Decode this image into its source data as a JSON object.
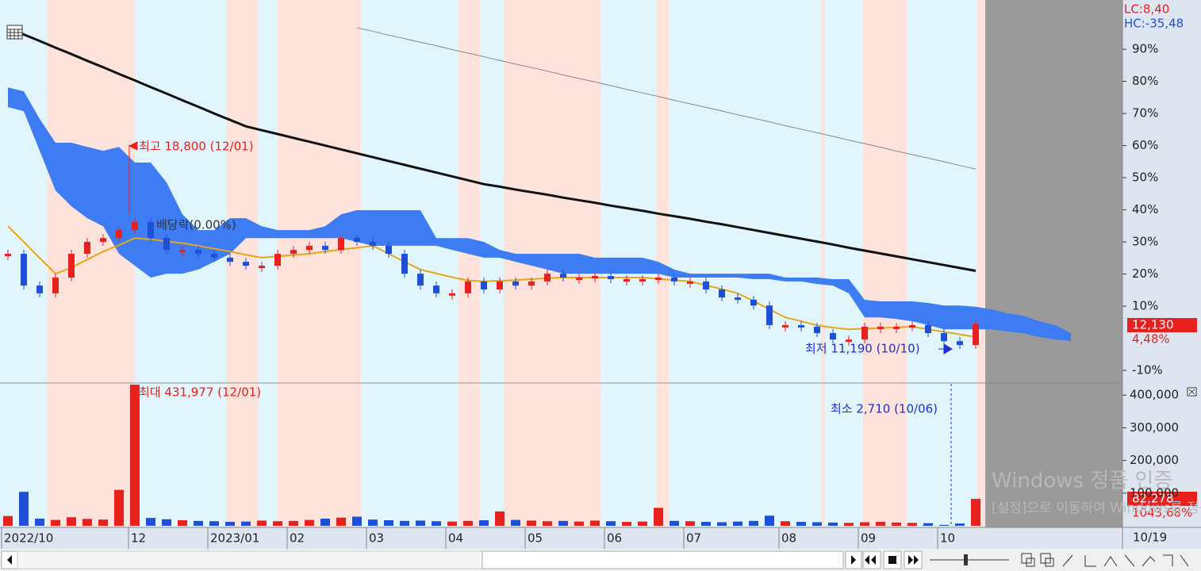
{
  "chart_data": [
    {
      "type": "candlestick",
      "lc_label": "LC:8,40",
      "hc_label": "HC:-35,48",
      "last_price": "12,130",
      "last_change": "4,48%",
      "annotations": {
        "high": "최고 18,800 (12/01)",
        "low": "최저 11,190 (10/10)",
        "dividend": "배당락(0.00%)"
      },
      "x_last_label": "10/19",
      "categories": [
        "2022/10",
        null,
        null,
        null,
        null,
        null,
        null,
        null,
        "12",
        null,
        null,
        null,
        null,
        "2023/01",
        null,
        null,
        null,
        null,
        "02",
        null,
        null,
        null,
        null,
        "03",
        null,
        null,
        null,
        null,
        "04",
        null,
        null,
        null,
        null,
        "05",
        null,
        null,
        null,
        null,
        "06",
        null,
        null,
        null,
        null,
        "07",
        null,
        null,
        null,
        null,
        null,
        "08",
        null,
        null,
        null,
        null,
        "09",
        null,
        null,
        null,
        null,
        "10",
        null,
        null,
        null,
        null,
        null,
        null,
        null,
        null
      ],
      "price": {
        "up_color": "#e8201e",
        "down_color": "#1f4fd8",
        "values": [
          26.3,
          16.4,
          14.0,
          18.9,
          26.3,
          30.0,
          31.2,
          33.7,
          36.2,
          31.2,
          27.5,
          27.5,
          26.3,
          25.1,
          23.8,
          22.6,
          22.6,
          26.3,
          27.5,
          28.8,
          27.5,
          31.2,
          30.0,
          28.8,
          26.3,
          20.1,
          16.4,
          14.0,
          14.0,
          17.7,
          15.2,
          17.7,
          16.4,
          17.7,
          20.1,
          18.9,
          18.9,
          19.4,
          18.4,
          18.4,
          18.4,
          18.9,
          17.7,
          17.7,
          15.2,
          12.7,
          12.0,
          10.2,
          4.1,
          4.1,
          3.6,
          1.6,
          -0.4,
          -0.4,
          3.6,
          3.6,
          3.6,
          4.1,
          1.6,
          -0.9,
          -2.1,
          4.48,
          null,
          null,
          null,
          null,
          null,
          null
        ]
      },
      "cloud": {
        "color": "#3d7cf2",
        "upper": [
          78.1,
          76.9,
          68.3,
          60.9,
          60.9,
          59.6,
          58.4,
          59.6,
          54.7,
          54.7,
          48.5,
          38.6,
          33.7,
          33.7,
          37.4,
          37.4,
          34.9,
          33.7,
          33.7,
          33.7,
          34.9,
          38.6,
          39.9,
          39.9,
          39.9,
          39.9,
          39.9,
          31.2,
          31.2,
          31.2,
          30.0,
          27.5,
          26.3,
          26.3,
          26.3,
          26.3,
          26.3,
          25.1,
          25.1,
          25.1,
          25.1,
          23.8,
          21.4,
          20.1,
          20.1,
          20.1,
          20.1,
          20.1,
          20.1,
          18.9,
          18.9,
          18.9,
          18.4,
          18.4,
          12.0,
          11.5,
          11.5,
          11.5,
          11.0,
          10.2,
          10.2,
          9.8,
          9.0,
          7.8,
          7.0,
          5.3,
          4.1,
          1.6
        ],
        "lower": [
          72.0,
          70.7,
          58.4,
          46.0,
          41.1,
          37.4,
          34.9,
          26.3,
          22.6,
          18.9,
          20.1,
          20.1,
          21.4,
          23.8,
          26.3,
          31.2,
          31.2,
          31.2,
          31.2,
          31.2,
          31.2,
          31.2,
          30.0,
          28.8,
          28.8,
          28.8,
          28.8,
          28.8,
          27.5,
          26.3,
          25.1,
          25.1,
          23.8,
          22.6,
          21.4,
          20.1,
          20.1,
          20.1,
          20.1,
          20.1,
          20.1,
          20.1,
          18.9,
          18.9,
          18.9,
          18.9,
          18.9,
          18.4,
          18.4,
          17.7,
          17.7,
          16.9,
          16.4,
          14.0,
          6.5,
          6.5,
          6.0,
          5.3,
          4.1,
          2.8,
          2.8,
          2.8,
          2.8,
          2.1,
          1.6,
          0.4,
          -0.4,
          -0.9
        ]
      },
      "lines": [
        {
          "color": "#e6a51c",
          "width": 2,
          "values": [
            34.9,
            30,
            25,
            20.1,
            22,
            24.5,
            27,
            29,
            31.2,
            30.8,
            30.2,
            29.6,
            28.8,
            27.9,
            27,
            26,
            25.1,
            25.5,
            25.9,
            26.3,
            27,
            27.6,
            28.2,
            28.8,
            26.3,
            23.8,
            21.4,
            20.2,
            19,
            18,
            17.7,
            17.9,
            18.1,
            18.4,
            18.7,
            18.9,
            18.9,
            18.9,
            18.9,
            18.9,
            18.9,
            18.5,
            18.1,
            17.7,
            16.5,
            15.3,
            14.0,
            11.6,
            9,
            6.5,
            5.3,
            4,
            3.3,
            2.8,
            3,
            3.2,
            3.4,
            3.6,
            2.8,
            2,
            1.2,
            0.4,
            null,
            null,
            null,
            null,
            null,
            null
          ]
        },
        {
          "color": "#111111",
          "width": 3,
          "values": [
            96.7,
            94.6,
            92.6,
            90.5,
            88.5,
            86.4,
            84.4,
            82.3,
            80.3,
            78.2,
            76.2,
            74.1,
            72.1,
            70.0,
            68.0,
            66.0,
            64.8,
            63.6,
            62.4,
            61.2,
            60.0,
            58.8,
            57.6,
            56.4,
            55.2,
            54.0,
            52.8,
            51.6,
            50.4,
            49.2,
            48.0,
            47.2,
            46.3,
            45.5,
            44.7,
            43.8,
            43.0,
            42.2,
            41.3,
            40.5,
            39.7,
            38.8,
            38.0,
            37.2,
            36.3,
            35.5,
            34.6,
            33.7,
            32.8,
            31.9,
            31.0,
            30.1,
            29.2,
            28.2,
            27.3,
            26.4,
            25.5,
            24.6,
            23.7,
            22.8,
            21.9,
            21.0,
            null,
            null,
            null,
            null,
            null,
            null
          ]
        },
        {
          "color": "#888888",
          "width": 1,
          "values": [
            null,
            null,
            null,
            null,
            null,
            null,
            null,
            null,
            null,
            null,
            null,
            null,
            null,
            null,
            null,
            null,
            null,
            null,
            null,
            null,
            null,
            null,
            96.7,
            95.6,
            94.4,
            93.3,
            92.2,
            91.1,
            89.9,
            88.8,
            87.7,
            86.5,
            85.4,
            84.3,
            83.2,
            82.0,
            80.9,
            79.8,
            78.7,
            77.5,
            76.4,
            75.3,
            74.1,
            73.0,
            71.9,
            70.8,
            69.6,
            68.5,
            67.4,
            66.2,
            65.1,
            64.0,
            62.9,
            61.7,
            60.6,
            59.5,
            58.3,
            57.2,
            56.1,
            55.0,
            53.8,
            52.7,
            null,
            null,
            null,
            null,
            null,
            null
          ]
        }
      ],
      "ylim": [
        -13.7,
        104.6
      ],
      "yticks": [
        {
          "value": 90,
          "label": "90%"
        },
        {
          "value": 80,
          "label": "80%"
        },
        {
          "value": 70,
          "label": "70%"
        },
        {
          "value": 60,
          "label": "60%"
        },
        {
          "value": 50,
          "label": "50%"
        },
        {
          "value": 40,
          "label": "40%"
        },
        {
          "value": 30,
          "label": "30%"
        },
        {
          "value": 20,
          "label": "20%"
        },
        {
          "value": 10,
          "label": "10%"
        },
        {
          "value": -10,
          "label": "-10%"
        }
      ]
    },
    {
      "type": "bar",
      "annotations": {
        "max": "최대 431,977 (12/01)",
        "min": "최소 2,710 (10/06)"
      },
      "last_volume": "82,278",
      "last_ratio": "1043,68%",
      "up_color": "#e8201e",
      "down_color": "#1f4fd8",
      "values": [
        30000,
        104000,
        22000,
        18000,
        26000,
        21000,
        19000,
        110000,
        431977,
        24000,
        20000,
        17000,
        15000,
        14000,
        12000,
        13000,
        16000,
        14000,
        15000,
        18000,
        22000,
        25000,
        28000,
        19000,
        17000,
        15000,
        16000,
        14000,
        13000,
        15000,
        17000,
        44000,
        18000,
        16000,
        14000,
        15000,
        13000,
        16000,
        14000,
        12000,
        13000,
        55000,
        15000,
        14000,
        12000,
        11000,
        13000,
        15000,
        31000,
        14000,
        12000,
        11000,
        10000,
        9000,
        11000,
        12000,
        10000,
        9000,
        8000,
        2710,
        7000,
        82278,
        null,
        null,
        null,
        null,
        null,
        null
      ],
      "ylim": [
        0,
        432000
      ],
      "yticks": [
        {
          "value": 100000,
          "label": "100,000"
        },
        {
          "value": 200000,
          "label": "200,000"
        },
        {
          "value": 300000,
          "label": "300,000"
        },
        {
          "value": 400000,
          "label": "400,000"
        }
      ]
    }
  ],
  "watermark": {
    "line1": "Windows 정품 인증",
    "line2": "[설정]으로 이동하여 Windows를 정품 인증합니다."
  }
}
